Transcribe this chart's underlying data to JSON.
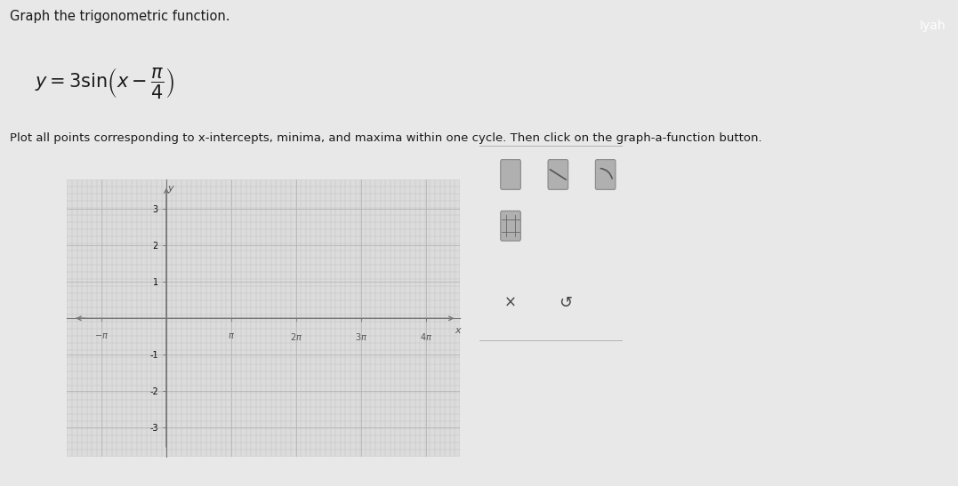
{
  "title_text": "Graph the trigonometric function.",
  "instruction_text": "Plot all points corresponding to x-intercepts, minima, and maxima within one cycle. Then click on the graph-a-function button.",
  "bg_color": "#e8e8e8",
  "grid_bg": "#dcdcdc",
  "grid_minor_color": "#c0c0c0",
  "grid_major_color": "#b0b0b0",
  "axis_color": "#777777",
  "x_min": -4.8,
  "x_max": 14.2,
  "y_min": -3.8,
  "y_max": 3.8,
  "y_ticks": [
    -3,
    -2,
    -1,
    1,
    2,
    3
  ],
  "text_color": "#1a1a1a",
  "axis_label_color": "#555555",
  "toolbar_bg": "#c8c8c8",
  "toolbar_border": "#aaaaaa",
  "tab_bg": "#5cb85c",
  "tab_text": "Iyah"
}
